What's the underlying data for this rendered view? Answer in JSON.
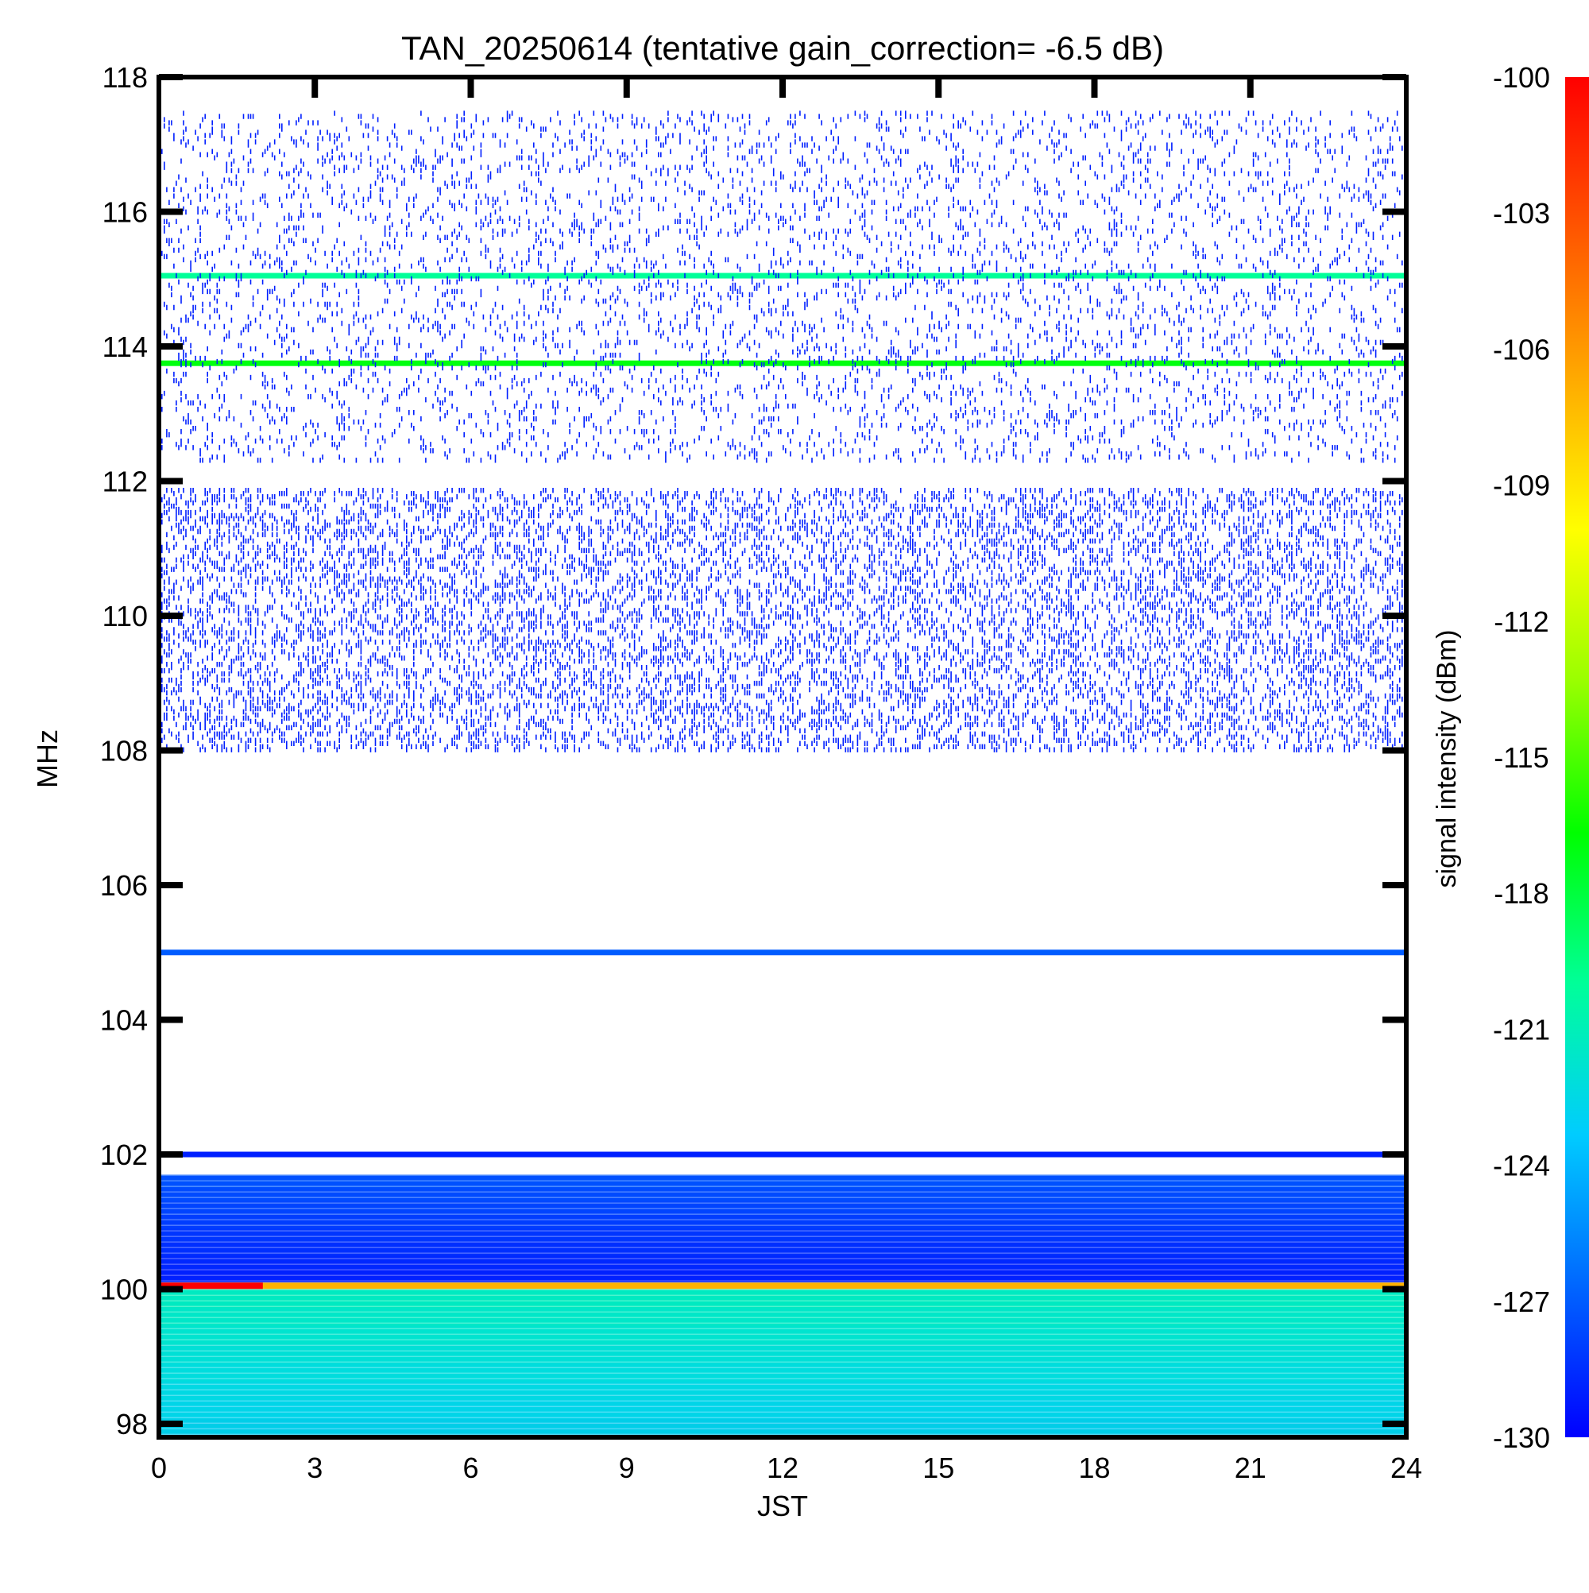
{
  "chart_data": {
    "type": "heatmap",
    "title": "TAN_20250614 (tentative gain_correction= -6.5 dB)",
    "xlabel": "JST",
    "ylabel": "MHz",
    "xlim": [
      0,
      24
    ],
    "ylim": [
      97.8,
      118
    ],
    "x_ticks": [
      "0",
      "3",
      "6",
      "9",
      "12",
      "15",
      "18",
      "21",
      "24"
    ],
    "y_ticks": [
      "98",
      "100",
      "102",
      "104",
      "106",
      "108",
      "110",
      "112",
      "114",
      "116",
      "118"
    ],
    "colorbar": {
      "label": "signal intensity (dBm)",
      "range": [
        -130,
        -100
      ],
      "ticks": [
        "-100",
        "-103",
        "-106",
        "-109",
        "-112",
        "-115",
        "-118",
        "-121",
        "-124",
        "-127",
        "-130"
      ],
      "colormap": [
        "#0000ff",
        "#0066ff",
        "#00ccff",
        "#00ff99",
        "#00ff00",
        "#99ff00",
        "#ffff00",
        "#ffaa00",
        "#ff5500",
        "#ff0000"
      ]
    },
    "features": [
      {
        "name": "continuous carrier",
        "freq_mhz": 115.05,
        "intensity_dbm": -120
      },
      {
        "name": "continuous carrier",
        "freq_mhz": 113.75,
        "intensity_dbm": -117
      },
      {
        "name": "sparse noise band",
        "freq_range_mhz": [
          112.3,
          117.5
        ],
        "intensity_dbm": -129
      },
      {
        "name": "dense noise band",
        "freq_range_mhz": [
          108.0,
          111.9
        ],
        "intensity_dbm": -129
      },
      {
        "name": "carrier band",
        "freq_mhz": 105.0,
        "intensity_dbm": -127
      },
      {
        "name": "carrier band",
        "freq_mhz": 102.0,
        "intensity_dbm": -129
      },
      {
        "name": "broadband floor",
        "freq_range_mhz": [
          100.1,
          101.7
        ],
        "intensity_dbm": -128
      },
      {
        "name": "strong carrier",
        "freq_mhz": 100.05,
        "intensity_dbm": -107,
        "early_intensity_dbm": -100,
        "early_until_jst": 2
      },
      {
        "name": "broadband floor",
        "freq_range_mhz": [
          97.8,
          100.0
        ],
        "intensity_dbm": -122
      }
    ]
  }
}
